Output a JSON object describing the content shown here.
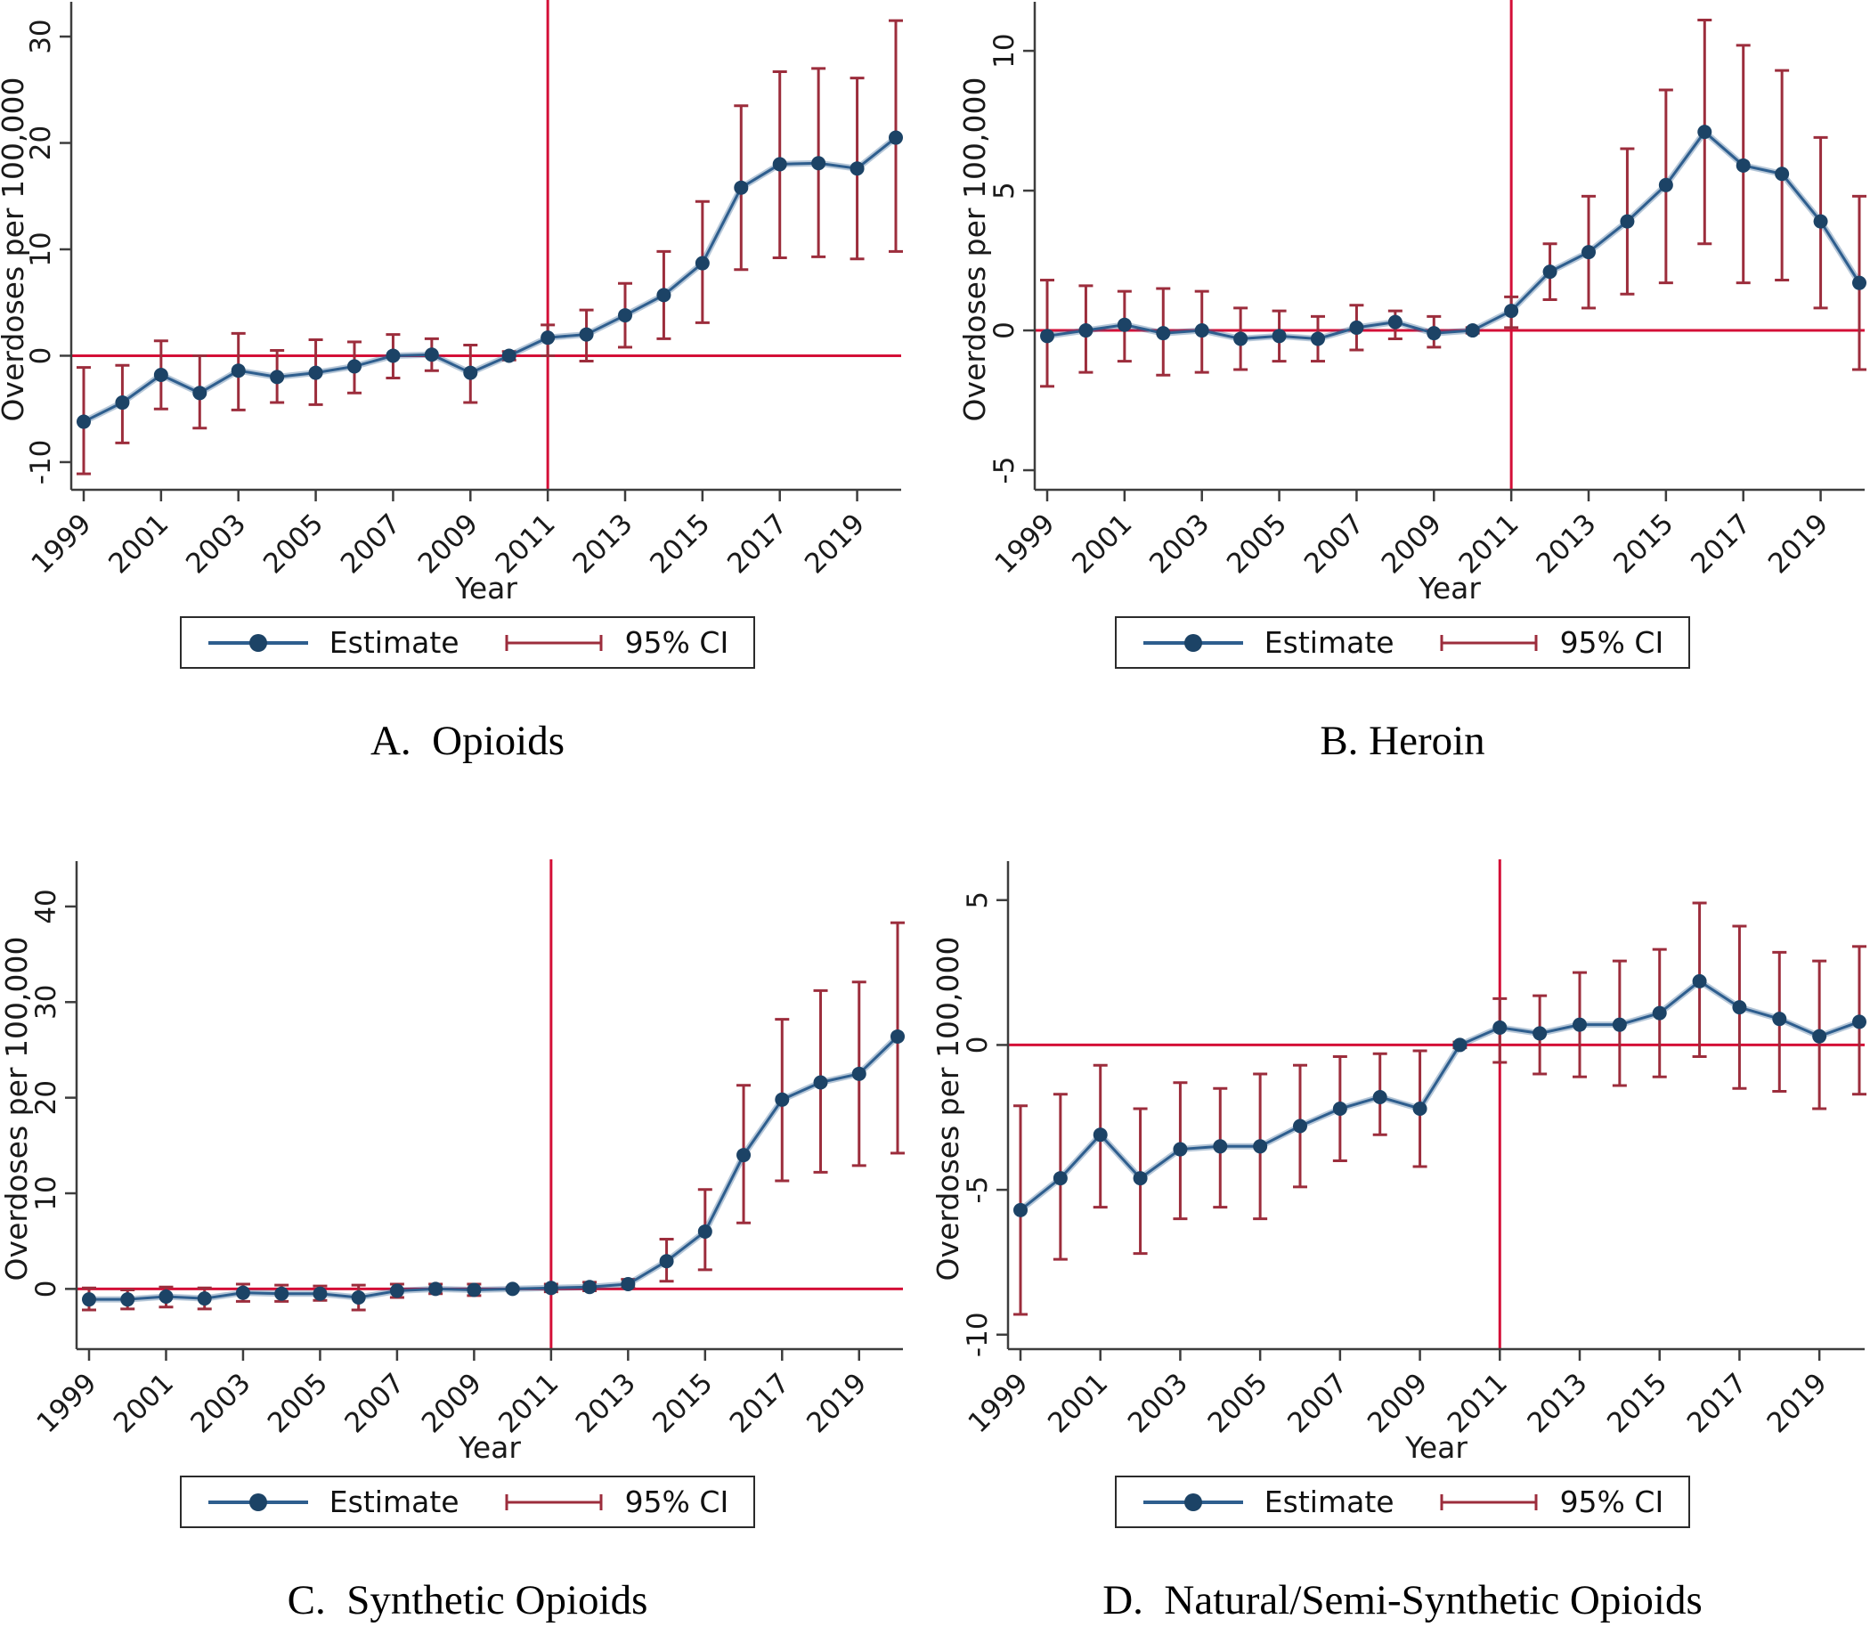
{
  "legend": {
    "estimate": "Estimate",
    "ci": "95% CI"
  },
  "colors": {
    "estimate_line": "#2e5e8e",
    "estimate_marker": "#1c4366",
    "ci": "#9c2d3c",
    "reference_line": "#d40f37",
    "axis": "#3d3d3d",
    "text": "#1a1a1a"
  },
  "chart_data": [
    {
      "type": "line",
      "title": "A.  Opioids",
      "xlabel": "Year",
      "ylabel": "Overdoses per 100,000",
      "x": [
        1999,
        2000,
        2001,
        2002,
        2003,
        2004,
        2005,
        2006,
        2007,
        2008,
        2009,
        2010,
        2011,
        2012,
        2013,
        2014,
        2015,
        2016,
        2017,
        2018,
        2019,
        2020
      ],
      "series": [
        {
          "name": "Estimate",
          "values": [
            -6.2,
            -4.4,
            -1.8,
            -3.5,
            -1.4,
            -2.0,
            -1.6,
            -1.0,
            0.0,
            0.1,
            -1.6,
            0.0,
            1.7,
            2.0,
            3.8,
            5.7,
            8.7,
            15.8,
            18.0,
            18.1,
            17.6,
            20.5
          ]
        },
        {
          "name": "95% CI lower",
          "values": [
            -11.1,
            -8.2,
            -5.0,
            -6.8,
            -5.1,
            -4.4,
            -4.6,
            -3.5,
            -2.1,
            -1.4,
            -4.4,
            -0.4,
            0.0,
            -0.5,
            0.8,
            1.6,
            3.1,
            8.1,
            9.2,
            9.3,
            9.1,
            9.8
          ]
        },
        {
          "name": "95% CI upper",
          "values": [
            -1.1,
            -0.9,
            1.4,
            0.0,
            2.1,
            0.5,
            1.5,
            1.3,
            2.0,
            1.6,
            1.0,
            0.4,
            2.9,
            4.3,
            6.8,
            9.8,
            14.5,
            23.5,
            26.7,
            27.0,
            26.1,
            31.5
          ]
        }
      ],
      "vline_x": 2011,
      "hline_y": 0,
      "ylim": [
        -12.6,
        32.6
      ],
      "yticks": [
        -10,
        0,
        10,
        20,
        30
      ],
      "xticks": [
        1999,
        2001,
        2003,
        2005,
        2007,
        2009,
        2011,
        2013,
        2015,
        2017,
        2019
      ],
      "grid": false,
      "legend_position": "bottom",
      "layout": {
        "left": 80,
        "right": 1012,
        "pad_left": 14,
        "pad_right": 6
      }
    },
    {
      "type": "line",
      "title": "B. Heroin",
      "xlabel": "Year",
      "ylabel": "Overdoses per 100,000",
      "x": [
        1999,
        2000,
        2001,
        2002,
        2003,
        2004,
        2005,
        2006,
        2007,
        2008,
        2009,
        2010,
        2011,
        2012,
        2013,
        2014,
        2015,
        2016,
        2017,
        2018,
        2019,
        2020
      ],
      "series": [
        {
          "name": "Estimate",
          "values": [
            -0.2,
            0.0,
            0.2,
            -0.1,
            0.0,
            -0.3,
            -0.2,
            -0.3,
            0.1,
            0.3,
            -0.1,
            0.0,
            0.7,
            2.1,
            2.8,
            3.9,
            5.2,
            7.1,
            5.9,
            5.6,
            3.9,
            1.7
          ]
        },
        {
          "name": "95% CI lower",
          "values": [
            -2.0,
            -1.5,
            -1.1,
            -1.6,
            -1.5,
            -1.4,
            -1.1,
            -1.1,
            -0.7,
            -0.3,
            -0.6,
            -0.1,
            0.1,
            1.1,
            0.8,
            1.3,
            1.7,
            3.1,
            1.7,
            1.8,
            0.8,
            -1.4
          ]
        },
        {
          "name": "95% CI upper",
          "values": [
            1.8,
            1.6,
            1.4,
            1.5,
            1.4,
            0.8,
            0.7,
            0.5,
            0.9,
            0.7,
            0.5,
            0.1,
            1.2,
            3.1,
            4.8,
            6.5,
            8.6,
            11.1,
            10.2,
            9.3,
            6.9,
            4.8
          ]
        }
      ],
      "vline_x": 2011,
      "hline_y": 0,
      "ylim": [
        -5.7,
        11.5
      ],
      "yticks": [
        -5,
        0,
        5,
        10
      ],
      "xticks": [
        1999,
        2001,
        2003,
        2005,
        2007,
        2009,
        2011,
        2013,
        2015,
        2017,
        2019
      ],
      "grid": false,
      "legend_position": "bottom",
      "layout": {
        "left": 112,
        "right": 1044,
        "pad_left": 14,
        "pad_right": 6
      }
    },
    {
      "type": "line",
      "title": "C.  Synthetic Opioids",
      "xlabel": "Year",
      "ylabel": "Overdoses per 100,000",
      "x": [
        1999,
        2000,
        2001,
        2002,
        2003,
        2004,
        2005,
        2006,
        2007,
        2008,
        2009,
        2010,
        2011,
        2012,
        2013,
        2014,
        2015,
        2016,
        2017,
        2018,
        2019,
        2020
      ],
      "series": [
        {
          "name": "Estimate",
          "values": [
            -1.1,
            -1.1,
            -0.8,
            -1.0,
            -0.4,
            -0.5,
            -0.5,
            -0.9,
            -0.2,
            0.0,
            -0.1,
            0.0,
            0.1,
            0.2,
            0.5,
            2.9,
            6.0,
            14.0,
            19.8,
            21.6,
            22.5,
            26.4
          ]
        },
        {
          "name": "95% CI lower",
          "values": [
            -2.2,
            -2.1,
            -1.9,
            -2.1,
            -1.3,
            -1.3,
            -1.2,
            -2.2,
            -0.9,
            -0.5,
            -0.7,
            -0.1,
            -0.3,
            -0.2,
            0.1,
            0.8,
            2.0,
            6.9,
            11.3,
            12.2,
            12.9,
            14.2
          ]
        },
        {
          "name": "95% CI upper",
          "values": [
            0.1,
            -0.1,
            0.2,
            0.1,
            0.5,
            0.4,
            0.3,
            0.4,
            0.5,
            0.5,
            0.5,
            0.1,
            0.5,
            0.7,
            1.0,
            5.2,
            10.4,
            21.3,
            28.2,
            31.2,
            32.1,
            38.3
          ]
        }
      ],
      "vline_x": 2011,
      "hline_y": 0,
      "ylim": [
        -6.3,
        44.0
      ],
      "yticks": [
        0,
        10,
        20,
        30,
        40
      ],
      "xticks": [
        1999,
        2001,
        2003,
        2005,
        2007,
        2009,
        2011,
        2013,
        2015,
        2017,
        2019
      ],
      "grid": false,
      "legend_position": "bottom",
      "layout": {
        "left": 86,
        "right": 1014,
        "pad_left": 14,
        "pad_right": 6
      }
    },
    {
      "type": "line",
      "title": "D.  Natural/Semi-Synthetic Opioids",
      "xlabel": "Year",
      "ylabel": "Overdoses per 100,000",
      "x": [
        1999,
        2000,
        2001,
        2002,
        2003,
        2004,
        2005,
        2006,
        2007,
        2008,
        2009,
        2010,
        2011,
        2012,
        2013,
        2014,
        2015,
        2016,
        2017,
        2018,
        2019,
        2020
      ],
      "series": [
        {
          "name": "Estimate",
          "values": [
            -5.7,
            -4.6,
            -3.1,
            -4.6,
            -3.6,
            -3.5,
            -3.5,
            -2.8,
            -2.2,
            -1.8,
            -2.2,
            0.0,
            0.6,
            0.4,
            0.7,
            0.7,
            1.1,
            2.2,
            1.3,
            0.9,
            0.3,
            0.8
          ]
        },
        {
          "name": "95% CI lower",
          "values": [
            -9.3,
            -7.4,
            -5.6,
            -7.2,
            -6.0,
            -5.6,
            -6.0,
            -4.9,
            -4.0,
            -3.1,
            -4.2,
            -0.1,
            -0.6,
            -1.0,
            -1.1,
            -1.4,
            -1.1,
            -0.4,
            -1.5,
            -1.6,
            -2.2,
            -1.7
          ]
        },
        {
          "name": "95% CI upper",
          "values": [
            -2.1,
            -1.7,
            -0.7,
            -2.2,
            -1.3,
            -1.5,
            -1.0,
            -0.7,
            -0.4,
            -0.3,
            -0.2,
            0.1,
            1.6,
            1.7,
            2.5,
            2.9,
            3.3,
            4.9,
            4.1,
            3.2,
            2.9,
            3.4
          ]
        }
      ],
      "vline_x": 2011,
      "hline_y": 0,
      "ylim": [
        -10.5,
        6.1
      ],
      "yticks": [
        -10,
        -5,
        0,
        5
      ],
      "xticks": [
        1999,
        2001,
        2003,
        2005,
        2007,
        2009,
        2011,
        2013,
        2015,
        2017,
        2019
      ],
      "grid": false,
      "legend_position": "bottom",
      "layout": {
        "left": 82,
        "right": 1044,
        "pad_left": 14,
        "pad_right": 6
      }
    }
  ]
}
